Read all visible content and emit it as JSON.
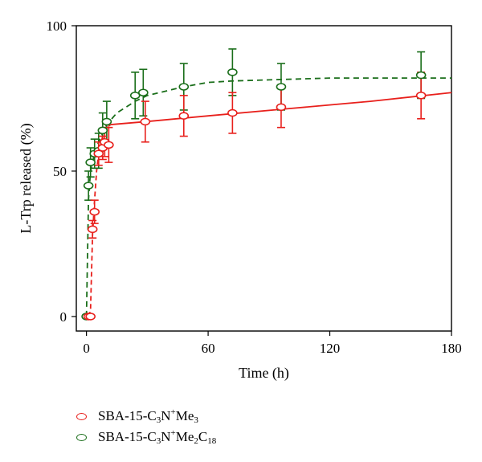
{
  "chart_data": {
    "type": "scatter",
    "xlabel": "Time (h)",
    "ylabel": "L-Trp released (%)",
    "xlim": [
      -5,
      180
    ],
    "ylim": [
      -5,
      100
    ],
    "xticks": [
      0,
      60,
      120,
      180
    ],
    "yticks": [
      0,
      50,
      100
    ],
    "grid": false,
    "legend_position": "bottom-left",
    "series": [
      {
        "name": "SBA-15-C3N+Me3",
        "name_parts": [
          {
            "t": "SBA-15-C",
            "s": "n"
          },
          {
            "t": "3",
            "s": "sub"
          },
          {
            "t": "N",
            "s": "n"
          },
          {
            "t": "+",
            "s": "sup"
          },
          {
            "t": "Me",
            "s": "n"
          },
          {
            "t": "3",
            "s": "sub"
          }
        ],
        "color": "#e8201c",
        "fit_style": "solid-after-dashed",
        "points": [
          {
            "x": 1,
            "y": 0,
            "err": 0
          },
          {
            "x": 2,
            "y": 0,
            "err": 0
          },
          {
            "x": 3,
            "y": 30,
            "err": 3
          },
          {
            "x": 4,
            "y": 36,
            "err": 4
          },
          {
            "x": 6,
            "y": 56,
            "err": 4
          },
          {
            "x": 8,
            "y": 58,
            "err": 4
          },
          {
            "x": 9,
            "y": 60,
            "err": 5
          },
          {
            "x": 11,
            "y": 59,
            "err": 6
          },
          {
            "x": 29,
            "y": 67,
            "err": 7
          },
          {
            "x": 48,
            "y": 69,
            "err": 7
          },
          {
            "x": 72,
            "y": 70,
            "err": 7
          },
          {
            "x": 96,
            "y": 72,
            "err": 7
          },
          {
            "x": 165,
            "y": 76,
            "err": 8
          }
        ],
        "fit_line": [
          [
            1,
            0
          ],
          [
            2,
            2
          ],
          [
            3,
            28
          ],
          [
            4,
            40
          ],
          [
            5,
            50
          ],
          [
            6,
            56
          ],
          [
            8,
            62
          ],
          [
            10,
            65
          ],
          [
            12,
            66
          ],
          [
            29,
            67
          ],
          [
            60,
            69
          ],
          [
            100,
            71.5
          ],
          [
            140,
            74
          ],
          [
            180,
            77
          ]
        ]
      },
      {
        "name": "SBA-15-C3N+Me2C18",
        "name_parts": [
          {
            "t": "SBA-15-C",
            "s": "n"
          },
          {
            "t": "3",
            "s": "sub"
          },
          {
            "t": "N",
            "s": "n"
          },
          {
            "t": "+",
            "s": "sup"
          },
          {
            "t": "Me",
            "s": "n"
          },
          {
            "t": "2",
            "s": "sub"
          },
          {
            "t": "C",
            "s": "n"
          },
          {
            "t": "18",
            "s": "sub"
          }
        ],
        "color": "#1a6e1a",
        "fit_style": "dashed",
        "points": [
          {
            "x": 0,
            "y": 0,
            "err": 0
          },
          {
            "x": 1,
            "y": 45,
            "err": 5
          },
          {
            "x": 2,
            "y": 53,
            "err": 5
          },
          {
            "x": 4,
            "y": 56,
            "err": 5
          },
          {
            "x": 6,
            "y": 57,
            "err": 6
          },
          {
            "x": 8,
            "y": 64,
            "err": 6
          },
          {
            "x": 10,
            "y": 67,
            "err": 7
          },
          {
            "x": 24,
            "y": 76,
            "err": 8
          },
          {
            "x": 28,
            "y": 77,
            "err": 8
          },
          {
            "x": 48,
            "y": 79,
            "err": 8
          },
          {
            "x": 72,
            "y": 84,
            "err": 8
          },
          {
            "x": 96,
            "y": 79,
            "err": 8
          },
          {
            "x": 165,
            "y": 83,
            "err": 8
          }
        ],
        "fit_line": [
          [
            0,
            0
          ],
          [
            1,
            40
          ],
          [
            2,
            50
          ],
          [
            4,
            56
          ],
          [
            6,
            60
          ],
          [
            8,
            63
          ],
          [
            10,
            66
          ],
          [
            15,
            70
          ],
          [
            24,
            74
          ],
          [
            30,
            76
          ],
          [
            48,
            79
          ],
          [
            60,
            80.5
          ],
          [
            72,
            81
          ],
          [
            96,
            81.5
          ],
          [
            120,
            82
          ],
          [
            150,
            82
          ],
          [
            180,
            82
          ]
        ]
      }
    ]
  }
}
